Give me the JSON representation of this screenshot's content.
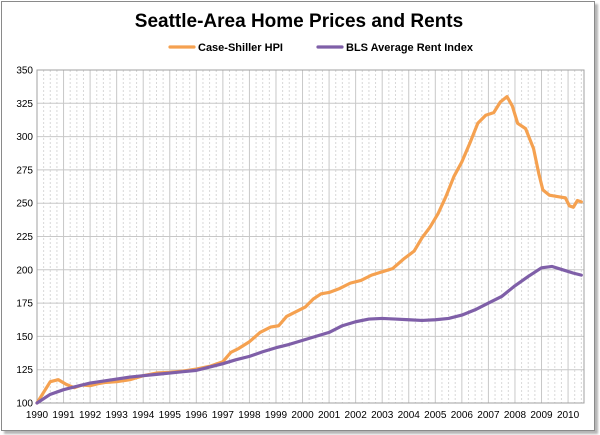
{
  "chart_data": {
    "type": "line",
    "title": "Seattle-Area Home Prices and Rents",
    "xlabel": "",
    "ylabel": "",
    "xlim": [
      1990,
      2010.6
    ],
    "ylim": [
      100,
      350
    ],
    "y_ticks": [
      100,
      125,
      150,
      175,
      200,
      225,
      250,
      275,
      300,
      325,
      350
    ],
    "x_ticks": [
      1990,
      1991,
      1992,
      1993,
      1994,
      1995,
      1996,
      1997,
      1998,
      1999,
      2000,
      2001,
      2002,
      2003,
      2004,
      2005,
      2006,
      2007,
      2008,
      2009,
      2010
    ],
    "grid": true,
    "legend_position": "top",
    "series": [
      {
        "name": "Case-Shiller HPI",
        "color": "#f5a150",
        "points": [
          [
            1990.0,
            100
          ],
          [
            1990.25,
            108
          ],
          [
            1990.5,
            116
          ],
          [
            1990.8,
            117.5
          ],
          [
            1991.1,
            114
          ],
          [
            1991.4,
            111.5
          ],
          [
            1991.7,
            113.5
          ],
          [
            1992.0,
            113
          ],
          [
            1992.3,
            114.5
          ],
          [
            1992.6,
            115.5
          ],
          [
            1993.0,
            116
          ],
          [
            1993.5,
            117.5
          ],
          [
            1994.0,
            120.5
          ],
          [
            1994.5,
            122.5
          ],
          [
            1995.0,
            123
          ],
          [
            1995.5,
            124
          ],
          [
            1996.0,
            125.5
          ],
          [
            1996.5,
            127.5
          ],
          [
            1997.0,
            131
          ],
          [
            1997.3,
            138
          ],
          [
            1997.6,
            141
          ],
          [
            1998.0,
            146
          ],
          [
            1998.4,
            153
          ],
          [
            1998.8,
            157
          ],
          [
            1999.1,
            158
          ],
          [
            1999.4,
            165
          ],
          [
            1999.8,
            169
          ],
          [
            2000.1,
            172
          ],
          [
            2000.4,
            178
          ],
          [
            2000.7,
            182
          ],
          [
            2001.0,
            183
          ],
          [
            2001.4,
            186
          ],
          [
            2001.8,
            190
          ],
          [
            2002.2,
            192
          ],
          [
            2002.6,
            196
          ],
          [
            2003.0,
            198.5
          ],
          [
            2003.4,
            201
          ],
          [
            2003.8,
            208
          ],
          [
            2004.2,
            214
          ],
          [
            2004.5,
            224
          ],
          [
            2004.8,
            232
          ],
          [
            2005.1,
            242
          ],
          [
            2005.4,
            255
          ],
          [
            2005.7,
            270
          ],
          [
            2006.0,
            281
          ],
          [
            2006.3,
            295
          ],
          [
            2006.6,
            310
          ],
          [
            2006.9,
            316
          ],
          [
            2007.2,
            318
          ],
          [
            2007.45,
            326
          ],
          [
            2007.7,
            330
          ],
          [
            2007.9,
            323
          ],
          [
            2008.1,
            310
          ],
          [
            2008.4,
            306
          ],
          [
            2008.7,
            291
          ],
          [
            2008.9,
            272
          ],
          [
            2009.05,
            260
          ],
          [
            2009.3,
            256
          ],
          [
            2009.6,
            255
          ],
          [
            2009.9,
            254
          ],
          [
            2010.05,
            248
          ],
          [
            2010.2,
            247
          ],
          [
            2010.35,
            252
          ],
          [
            2010.5,
            251
          ]
        ]
      },
      {
        "name": "BLS Average Rent Index",
        "color": "#7f5fa8",
        "points": [
          [
            1990.0,
            100
          ],
          [
            1990.5,
            106.5
          ],
          [
            1991.0,
            110
          ],
          [
            1991.5,
            112.5
          ],
          [
            1992.0,
            115
          ],
          [
            1992.5,
            116.5
          ],
          [
            1993.0,
            118
          ],
          [
            1993.5,
            119.5
          ],
          [
            1994.0,
            120.5
          ],
          [
            1994.5,
            121.5
          ],
          [
            1995.0,
            122.5
          ],
          [
            1995.5,
            123.5
          ],
          [
            1996.0,
            124.5
          ],
          [
            1996.5,
            127
          ],
          [
            1997.0,
            129.5
          ],
          [
            1997.5,
            132.5
          ],
          [
            1998.0,
            135
          ],
          [
            1998.5,
            138.5
          ],
          [
            1999.0,
            141.5
          ],
          [
            1999.5,
            144
          ],
          [
            2000.0,
            147
          ],
          [
            2000.5,
            150
          ],
          [
            2001.0,
            153
          ],
          [
            2001.5,
            158
          ],
          [
            2002.0,
            161
          ],
          [
            2002.5,
            163
          ],
          [
            2003.0,
            163.5
          ],
          [
            2003.5,
            163
          ],
          [
            2004.0,
            162.5
          ],
          [
            2004.5,
            162
          ],
          [
            2005.0,
            162.5
          ],
          [
            2005.5,
            163.5
          ],
          [
            2006.0,
            166
          ],
          [
            2006.5,
            170
          ],
          [
            2007.0,
            175
          ],
          [
            2007.5,
            180
          ],
          [
            2008.0,
            188
          ],
          [
            2008.5,
            195
          ],
          [
            2009.0,
            201.5
          ],
          [
            2009.4,
            202.5
          ],
          [
            2009.8,
            200
          ],
          [
            2010.2,
            197.5
          ],
          [
            2010.5,
            196
          ]
        ]
      }
    ]
  }
}
